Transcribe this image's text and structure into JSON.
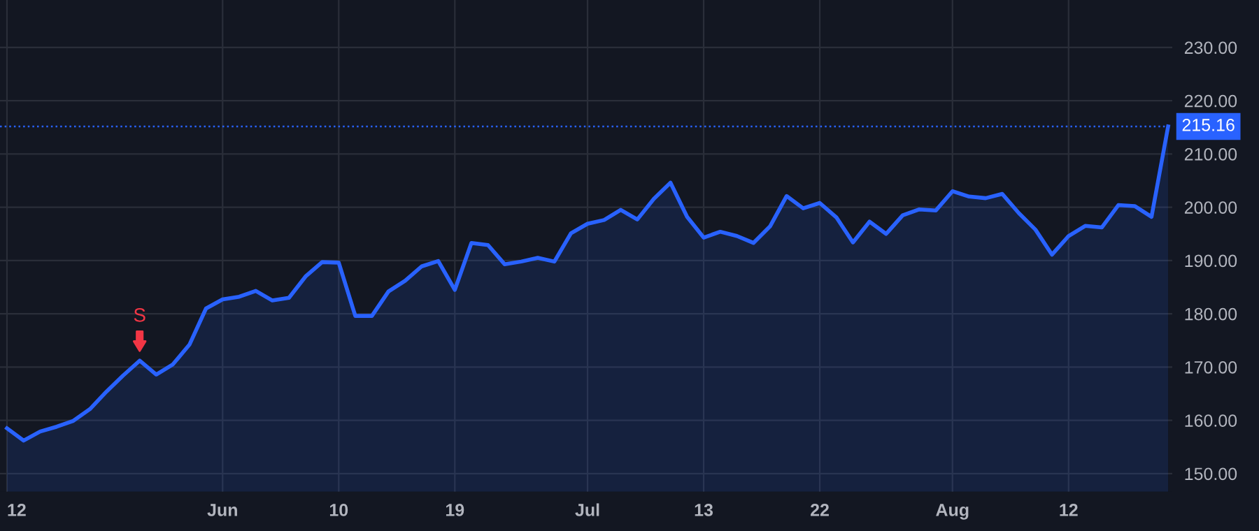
{
  "chart_data": {
    "type": "area",
    "categories": [
      "12",
      null,
      null,
      null,
      null,
      null,
      null,
      null,
      null,
      null,
      null,
      null,
      null,
      "Jun",
      null,
      null,
      null,
      null,
      null,
      null,
      "10",
      null,
      null,
      null,
      null,
      null,
      null,
      "19",
      null,
      null,
      null,
      null,
      null,
      null,
      null,
      "Jul",
      null,
      null,
      null,
      null,
      null,
      null,
      "13",
      null,
      null,
      null,
      null,
      null,
      null,
      "22",
      null,
      null,
      null,
      null,
      null,
      null,
      null,
      "Aug",
      null,
      null,
      null,
      null,
      null,
      null,
      "12",
      null,
      null,
      null,
      null,
      null,
      null
    ],
    "series": [
      {
        "color": "#2962ff",
        "values": [
          158.5,
          156.2,
          157.9,
          158.8,
          159.9,
          162.1,
          165.4,
          168.4,
          171.2,
          168.6,
          170.5,
          174.2,
          181.0,
          182.7,
          183.2,
          184.3,
          182.5,
          183.0,
          187.0,
          189.7,
          189.6,
          179.6,
          179.6,
          184.2,
          186.2,
          188.9,
          189.9,
          184.5,
          193.3,
          192.9,
          189.3,
          189.8,
          190.5,
          189.8,
          195.1,
          196.9,
          197.6,
          199.5,
          197.7,
          201.6,
          204.6,
          198.2,
          194.3,
          195.4,
          194.6,
          193.3,
          196.4,
          202.1,
          199.8,
          200.8,
          198.1,
          193.4,
          197.3,
          195.0,
          198.5,
          199.6,
          199.4,
          203.0,
          202.0,
          201.7,
          202.5,
          198.9,
          195.8,
          191.1,
          194.6,
          196.5,
          196.2,
          200.4,
          200.2,
          198.2,
          215.16
        ],
        "value_labels": [
          null,
          null,
          null,
          null,
          null,
          null,
          null,
          null,
          null,
          null,
          null,
          null,
          null,
          null,
          null,
          null,
          null,
          null,
          null,
          null,
          null,
          null,
          null,
          null,
          null,
          null,
          null,
          null,
          null,
          null,
          null,
          null,
          null,
          null,
          null,
          null,
          null,
          null,
          null,
          null,
          null,
          null,
          null,
          null,
          null,
          null,
          null,
          null,
          null,
          null,
          null,
          null,
          null,
          null,
          null,
          null,
          null,
          null,
          null,
          null,
          null,
          null,
          null,
          null,
          null,
          null,
          null,
          null,
          null,
          null,
          "215.16"
        ]
      }
    ],
    "ylim": [
      146.6,
      238.9
    ],
    "yticks": [
      {
        "value": 150,
        "label": "150.00"
      },
      {
        "value": 160,
        "label": "160.00"
      },
      {
        "value": 170,
        "label": "170.00"
      },
      {
        "value": 180,
        "label": "180.00"
      },
      {
        "value": 190,
        "label": "190.00"
      },
      {
        "value": 200,
        "label": "200.00"
      },
      {
        "value": 210,
        "label": "210.00"
      },
      {
        "value": 220,
        "label": "220.00"
      },
      {
        "value": 230,
        "label": "230.00"
      }
    ],
    "grid": true,
    "ref_lines": [
      {
        "axis": "y",
        "value": 215.16,
        "color": "#2962ff",
        "line_style": "dotted"
      }
    ],
    "annotations": [
      {
        "text": "S",
        "y": 171.2
      }
    ]
  }
}
